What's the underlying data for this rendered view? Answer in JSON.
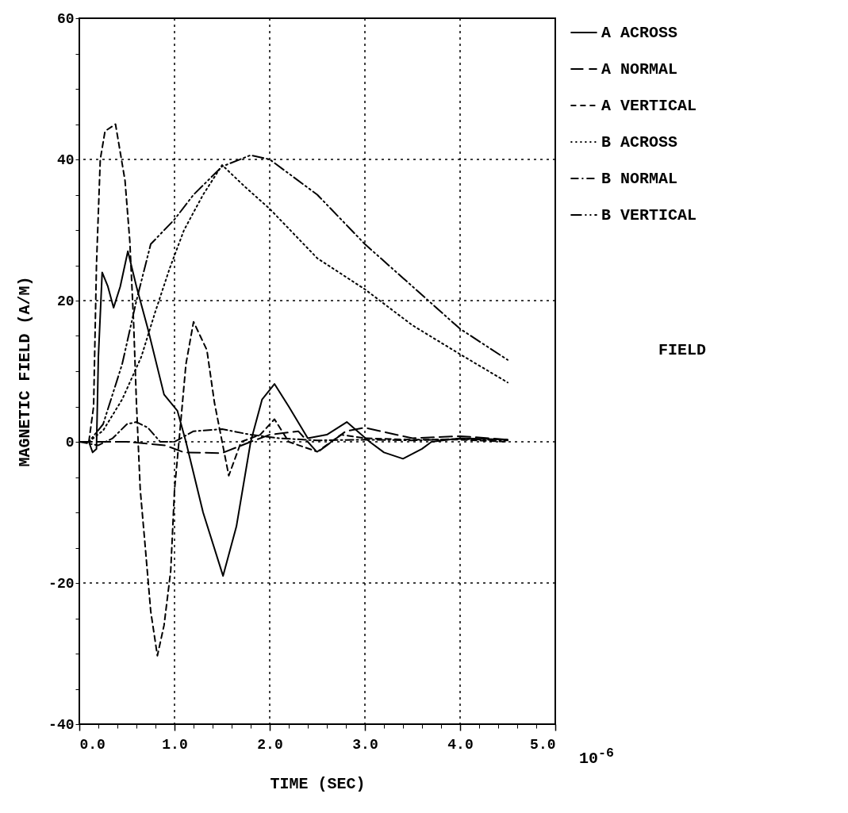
{
  "chart_data": {
    "type": "line",
    "xlabel": "TIME  (SEC)",
    "ylabel": "MAGNETIC FIELD  (A/M)",
    "annotations": [
      "FIELD",
      "10$^{-6}$"
    ],
    "xlim": [
      0,
      5
    ],
    "ylim": [
      -40,
      60
    ],
    "xticks": [
      {
        "value": 0,
        "label": "0.0"
      },
      {
        "value": 0.2,
        "label": null
      },
      {
        "value": 0.4,
        "label": null
      },
      {
        "value": 0.6,
        "label": null
      },
      {
        "value": 0.8,
        "label": null
      },
      {
        "value": 1,
        "label": "1.0"
      },
      {
        "value": 1.2,
        "label": null
      },
      {
        "value": 1.4,
        "label": null
      },
      {
        "value": 1.6,
        "label": null
      },
      {
        "value": 1.8,
        "label": null
      },
      {
        "value": 2,
        "label": "2.0"
      },
      {
        "value": 2.2,
        "label": null
      },
      {
        "value": 2.4,
        "label": null
      },
      {
        "value": 2.6,
        "label": null
      },
      {
        "value": 2.8,
        "label": null
      },
      {
        "value": 3,
        "label": "3.0"
      },
      {
        "value": 3.2,
        "label": null
      },
      {
        "value": 3.4,
        "label": null
      },
      {
        "value": 3.6,
        "label": null
      },
      {
        "value": 3.8,
        "label": null
      },
      {
        "value": 4,
        "label": "4.0"
      },
      {
        "value": 4.2,
        "label": null
      },
      {
        "value": 4.4,
        "label": null
      },
      {
        "value": 4.6,
        "label": null
      },
      {
        "value": 4.8,
        "label": null
      },
      {
        "value": 5,
        "label": "5.0"
      }
    ],
    "yticks": [
      -40,
      {
        "value": -35,
        "label": null
      },
      {
        "value": -30,
        "label": null
      },
      {
        "value": -25,
        "label": null
      },
      -20,
      {
        "value": -15,
        "label": null
      },
      {
        "value": -10,
        "label": null
      },
      {
        "value": -5,
        "label": null
      },
      0,
      {
        "value": 5,
        "label": null
      },
      {
        "value": 10,
        "label": null
      },
      {
        "value": 15,
        "label": null
      },
      20,
      {
        "value": 25,
        "label": null
      },
      {
        "value": 30,
        "label": null
      },
      {
        "value": 35,
        "label": null
      },
      40,
      {
        "value": 45,
        "label": null
      },
      {
        "value": 50,
        "label": null
      },
      {
        "value": 55,
        "label": null
      },
      60
    ],
    "grid": true,
    "legend": "top right",
    "marker": "none",
    "series": [
      {
        "name": "A ACROSS",
        "color": "#000000",
        "line_style": "solid",
        "x": [
          0,
          0.1,
          0.14,
          0.18,
          0.2,
          0.24,
          0.3,
          0.36,
          0.43,
          0.51,
          0.6,
          0.72,
          0.89,
          1.03,
          1.12,
          1.3,
          1.51,
          1.65,
          1.8,
          1.92,
          2.05,
          2.2,
          2.4,
          2.6,
          2.81,
          3.05,
          3.2,
          3.4,
          3.6,
          3.7,
          4,
          4.5
        ],
        "values": [
          0,
          0,
          -1.5,
          -1,
          12,
          24,
          22,
          19,
          22,
          27,
          22,
          16,
          6.7,
          4.4,
          0,
          -10,
          -19,
          -12,
          0,
          6,
          8.2,
          5,
          0.5,
          1,
          2.8,
          0,
          -1.5,
          -2.4,
          -1,
          0,
          0.5,
          0.3
        ]
      },
      {
        "name": "A NORMAL",
        "color": "#000000",
        "line_style": "longdash",
        "x": [
          0,
          0.5,
          0.9,
          1.1,
          1.5,
          1.8,
          2,
          2.3,
          2.5,
          2.8,
          3,
          3.5,
          4,
          4.5
        ],
        "values": [
          0,
          0,
          -0.5,
          -1.5,
          -1.6,
          0,
          1,
          1.5,
          -1.5,
          1.5,
          2,
          0.5,
          0.8,
          0.3
        ]
      },
      {
        "name": "A VERTICAL",
        "color": "#000000",
        "line_style": "dashed",
        "x": [
          0,
          0.1,
          0.15,
          0.18,
          0.22,
          0.27,
          0.38,
          0.48,
          0.53,
          0.57,
          0.6,
          0.64,
          0.69,
          0.75,
          0.82,
          0.89,
          0.96,
          1,
          1.06,
          1.12,
          1.2,
          1.34,
          1.42,
          1.57,
          1.7,
          1.9,
          2.05,
          2.2,
          2.5,
          2.75,
          3,
          3.5,
          4,
          4.5
        ],
        "values": [
          0,
          0,
          5,
          25,
          40,
          44,
          45,
          37,
          28.5,
          17,
          5.5,
          -6.8,
          -14.5,
          -24,
          -30.3,
          -26,
          -18.3,
          -6.8,
          2,
          11,
          17,
          13,
          5.5,
          -4.8,
          0,
          1,
          3.2,
          0,
          -1.4,
          1,
          0.5,
          0.3,
          0.3,
          0
        ]
      },
      {
        "name": "B ACROSS",
        "color": "#000000",
        "line_style": "dotted",
        "x": [
          0,
          0.1,
          0.25,
          0.45,
          0.65,
          0.8,
          0.95,
          1.1,
          1.3,
          1.5,
          1.75,
          2,
          2.5,
          3,
          3.5,
          4,
          4.5
        ],
        "values": [
          0,
          0,
          1.6,
          6,
          12,
          18.5,
          24.6,
          30,
          35,
          39.2,
          36,
          33,
          26,
          21.6,
          16.5,
          12.4,
          8.4
        ]
      },
      {
        "name": "B NORMAL",
        "color": "#000000",
        "line_style": "dashdot",
        "x": [
          0,
          0.2,
          0.35,
          0.5,
          0.6,
          0.72,
          0.85,
          1,
          1.2,
          1.5,
          1.8,
          2.1,
          2.5,
          3,
          3.5,
          4,
          4.5
        ],
        "values": [
          0,
          -0.5,
          0.5,
          2.5,
          2.8,
          2,
          0,
          0,
          1.5,
          1.8,
          1,
          0.5,
          0.2,
          0.3,
          0.2,
          0.4,
          0.2
        ]
      },
      {
        "name": "B VERTICAL",
        "color": "#000000",
        "line_style": "dashdotdot",
        "x": [
          0,
          0.1,
          0.25,
          0.45,
          0.6,
          0.75,
          1,
          1.2,
          1.5,
          1.8,
          2,
          2.5,
          3,
          3.5,
          4,
          4.5
        ],
        "values": [
          0,
          0,
          2.5,
          11,
          20,
          28,
          31.5,
          35,
          39,
          40.6,
          40,
          35,
          28,
          22,
          16,
          11.6
        ]
      }
    ]
  }
}
